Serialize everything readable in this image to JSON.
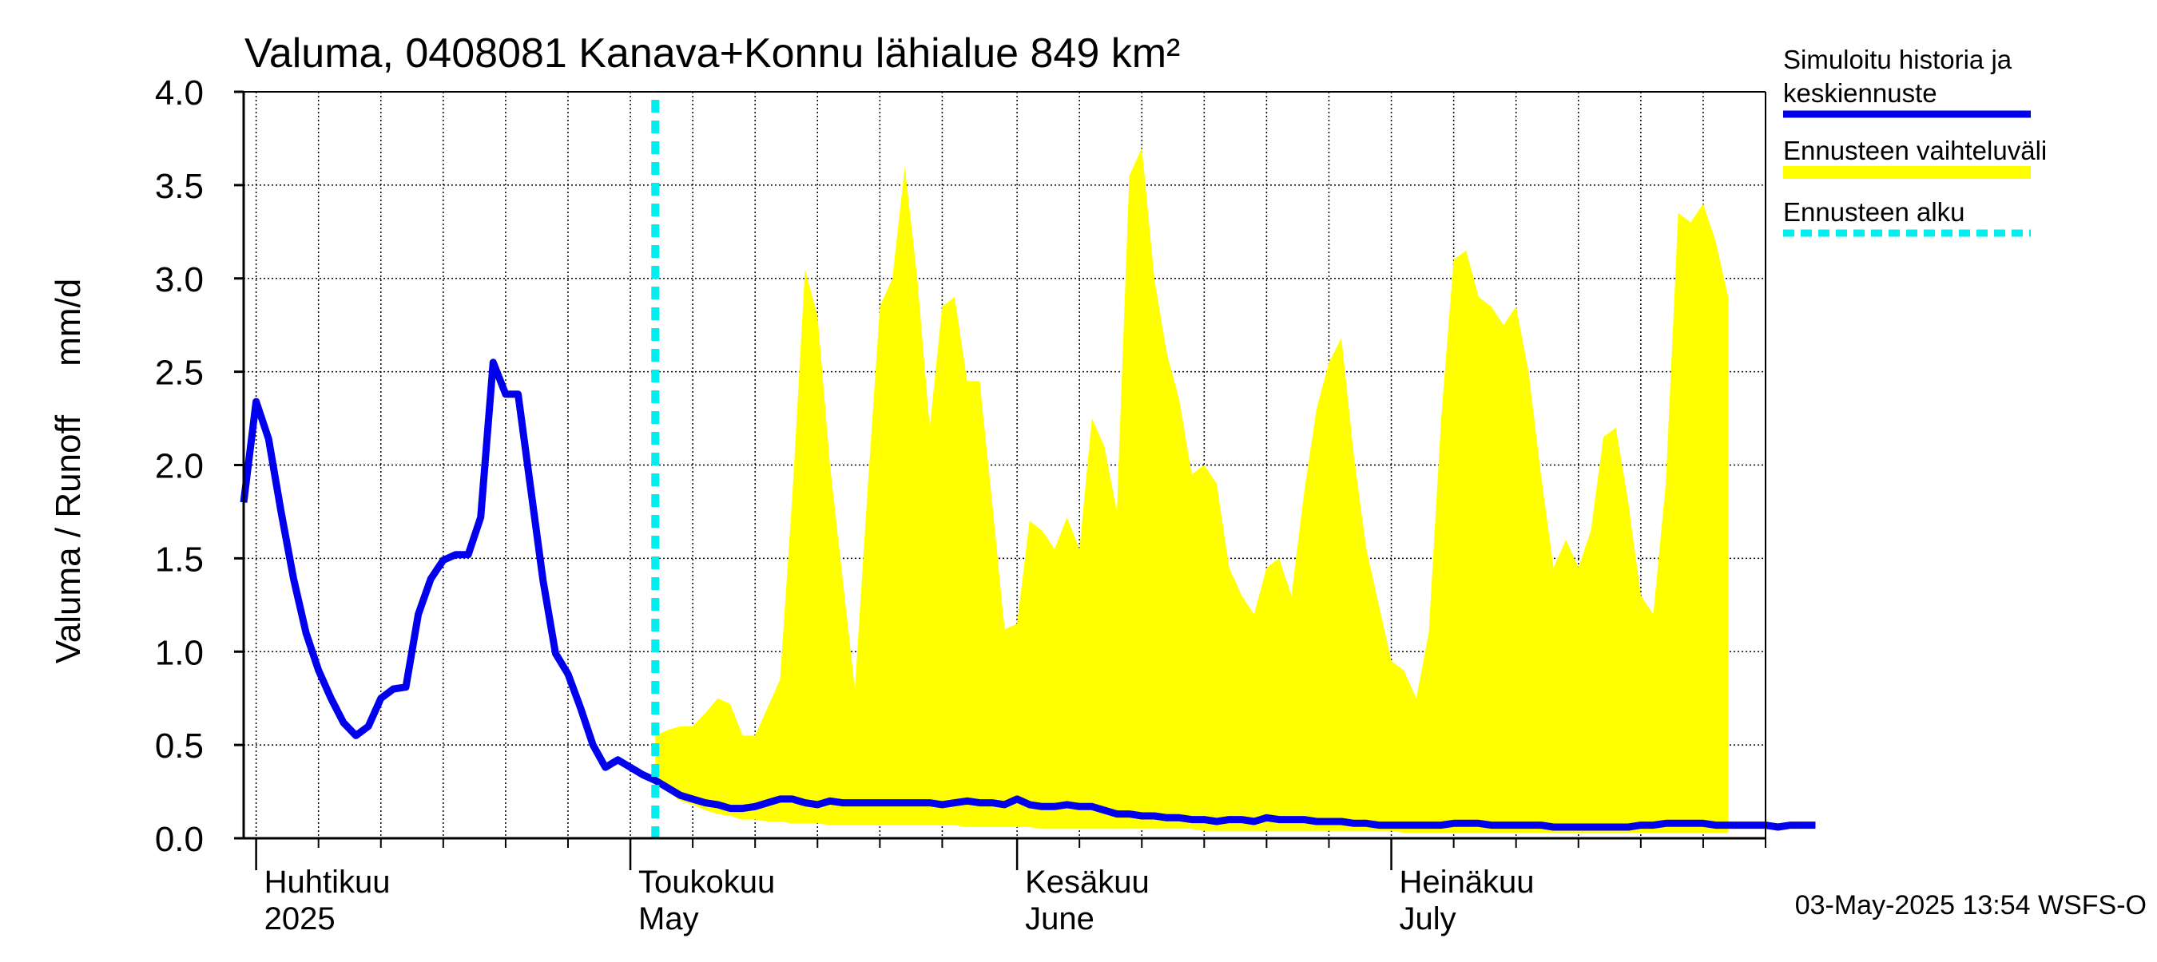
{
  "chart_data": {
    "type": "area",
    "title": "Valuma, 0408081 Kanava+Konnu lähialue 849 km²",
    "ylabel": "Valuma / Runoff     mm/d",
    "ylim": [
      0.0,
      4.0
    ],
    "yticks": [
      0.0,
      0.5,
      1.0,
      1.5,
      2.0,
      2.5,
      3.0,
      3.5,
      4.0
    ],
    "ytick_labels": [
      "0.0",
      "0.5",
      "1.0",
      "1.5",
      "2.0",
      "2.5",
      "3.0",
      "3.5",
      "4.0"
    ],
    "xlim": [
      "2025-03-31",
      "2025-07-31"
    ],
    "grid": true,
    "x_tick_weeks": [
      "2025-04-01",
      "2025-04-06",
      "2025-04-11",
      "2025-04-16",
      "2025-04-21",
      "2025-04-26",
      "2025-05-01",
      "2025-05-06",
      "2025-05-11",
      "2025-05-16",
      "2025-05-21",
      "2025-05-26",
      "2025-06-01",
      "2025-06-06",
      "2025-06-11",
      "2025-06-16",
      "2025-06-21",
      "2025-06-26",
      "2025-07-01",
      "2025-07-06",
      "2025-07-11",
      "2025-07-16",
      "2025-07-21",
      "2025-07-26",
      "2025-07-31"
    ],
    "month_ticks": [
      "2025-04-01",
      "2025-05-01",
      "2025-06-01",
      "2025-07-01"
    ],
    "month_labels": [
      {
        "date": "2025-04-01",
        "fi": "Huhtikuu",
        "en": "2025"
      },
      {
        "date": "2025-05-01",
        "fi": "Toukokuu",
        "en": "May"
      },
      {
        "date": "2025-06-01",
        "fi": "Kesäkuu",
        "en": "June"
      },
      {
        "date": "2025-07-01",
        "fi": "Heinäkuu",
        "en": "July"
      }
    ],
    "forecast_start": "2025-05-03",
    "legend": {
      "placement": "right",
      "entries": [
        {
          "label_lines": [
            "Simuloitu historia ja",
            "keskiennuste"
          ],
          "color": "#0000ee",
          "style": "line"
        },
        {
          "label_lines": [
            "Ennusteen vaihteluväli"
          ],
          "color": "#ffff00",
          "style": "band"
        },
        {
          "label_lines": [
            "Ennusteen alku"
          ],
          "color": "#00eeee",
          "style": "dashed"
        }
      ]
    },
    "series": [
      {
        "name": "Simuloitu historia ja keskiennuste",
        "color": "#0000ee",
        "start_date": "2025-03-31",
        "values": [
          1.8,
          2.34,
          2.14,
          1.75,
          1.39,
          1.1,
          0.9,
          0.75,
          0.62,
          0.55,
          0.6,
          0.75,
          0.8,
          0.81,
          1.2,
          1.39,
          1.49,
          1.52,
          1.52,
          1.72,
          2.55,
          2.38,
          2.38,
          1.88,
          1.38,
          0.99,
          0.88,
          0.7,
          0.5,
          0.38,
          0.42,
          0.38,
          0.34,
          0.31,
          0.27,
          0.23,
          0.21,
          0.19,
          0.18,
          0.16,
          0.16,
          0.17,
          0.19,
          0.21,
          0.21,
          0.19,
          0.18,
          0.2,
          0.19,
          0.19,
          0.19,
          0.19,
          0.19,
          0.19,
          0.19,
          0.19,
          0.18,
          0.19,
          0.2,
          0.19,
          0.19,
          0.18,
          0.21,
          0.18,
          0.17,
          0.17,
          0.18,
          0.17,
          0.17,
          0.15,
          0.13,
          0.13,
          0.12,
          0.12,
          0.11,
          0.11,
          0.1,
          0.1,
          0.09,
          0.1,
          0.1,
          0.09,
          0.11,
          0.1,
          0.1,
          0.1,
          0.09,
          0.09,
          0.09,
          0.08,
          0.08,
          0.07,
          0.07,
          0.07,
          0.07,
          0.07,
          0.07,
          0.08,
          0.08,
          0.08,
          0.07,
          0.07,
          0.07,
          0.07,
          0.07,
          0.06,
          0.06,
          0.06,
          0.06,
          0.06,
          0.06,
          0.06,
          0.07,
          0.07,
          0.08,
          0.08,
          0.08,
          0.08,
          0.07,
          0.07,
          0.07,
          0.07,
          0.07,
          0.06,
          0.07,
          0.07,
          0.07
        ]
      },
      {
        "name": "Ennusteen vaihteluväli",
        "color": "#ffff00",
        "start_date": "2025-05-03",
        "upper": [
          0.55,
          0.58,
          0.6,
          0.6,
          0.67,
          0.75,
          0.72,
          0.55,
          0.55,
          0.7,
          0.85,
          1.85,
          3.05,
          2.8,
          2.0,
          1.4,
          0.8,
          1.85,
          2.85,
          3.0,
          3.6,
          3.0,
          2.2,
          2.85,
          2.9,
          2.45,
          2.45,
          1.8,
          1.12,
          1.15,
          1.7,
          1.65,
          1.55,
          1.72,
          1.55,
          2.25,
          2.1,
          1.75,
          3.55,
          3.7,
          3.0,
          2.6,
          2.35,
          1.95,
          2.0,
          1.9,
          1.45,
          1.3,
          1.2,
          1.45,
          1.5,
          1.3,
          1.85,
          2.3,
          2.55,
          2.68,
          2.05,
          1.55,
          1.25,
          0.95,
          0.9,
          0.75,
          1.1,
          2.25,
          3.1,
          3.15,
          2.9,
          2.85,
          2.75,
          2.85,
          2.5,
          1.95,
          1.45,
          1.6,
          1.45,
          1.65,
          2.15,
          2.2,
          1.8,
          1.3,
          1.2,
          1.9,
          3.35,
          3.3,
          3.4,
          3.2,
          2.9
        ],
        "lower": [
          0.3,
          0.25,
          0.2,
          0.18,
          0.15,
          0.13,
          0.12,
          0.1,
          0.1,
          0.09,
          0.09,
          0.08,
          0.08,
          0.08,
          0.07,
          0.07,
          0.07,
          0.07,
          0.07,
          0.07,
          0.07,
          0.07,
          0.07,
          0.07,
          0.07,
          0.06,
          0.06,
          0.06,
          0.06,
          0.06,
          0.06,
          0.05,
          0.05,
          0.05,
          0.05,
          0.05,
          0.05,
          0.05,
          0.05,
          0.05,
          0.05,
          0.05,
          0.05,
          0.05,
          0.04,
          0.04,
          0.04,
          0.04,
          0.04,
          0.04,
          0.04,
          0.04,
          0.04,
          0.04,
          0.04,
          0.04,
          0.04,
          0.04,
          0.04,
          0.04,
          0.03,
          0.03,
          0.03,
          0.03,
          0.03,
          0.03,
          0.03,
          0.03,
          0.03,
          0.03,
          0.03,
          0.03,
          0.03,
          0.03,
          0.03,
          0.03,
          0.03,
          0.03,
          0.03,
          0.03,
          0.03,
          0.03,
          0.03,
          0.03,
          0.03,
          0.03,
          0.03
        ]
      }
    ]
  },
  "footer": {
    "timestamp": "03-May-2025 13:54 WSFS-O"
  }
}
